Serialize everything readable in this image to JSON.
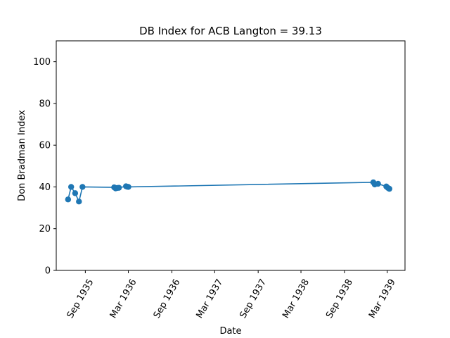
{
  "chart_data": {
    "type": "line",
    "title": "DB Index for ACB Langton = 39.13",
    "xlabel": "Date",
    "ylabel": "Don Bradman Index",
    "ylim": [
      0,
      110
    ],
    "xlim": [
      "1935-05-01",
      "1939-05-15"
    ],
    "yticks": [
      0,
      20,
      40,
      60,
      80,
      100
    ],
    "xticks": [
      {
        "date": "1935-09-01",
        "label": "Sep 1935"
      },
      {
        "date": "1936-03-01",
        "label": "Mar 1936"
      },
      {
        "date": "1936-09-01",
        "label": "Sep 1936"
      },
      {
        "date": "1937-03-01",
        "label": "Mar 1937"
      },
      {
        "date": "1937-09-01",
        "label": "Sep 1937"
      },
      {
        "date": "1938-03-01",
        "label": "Mar 1938"
      },
      {
        "date": "1938-09-01",
        "label": "Sep 1938"
      },
      {
        "date": "1939-03-01",
        "label": "Mar 1939"
      }
    ],
    "grid": false,
    "color": "#1f77b4",
    "series": [
      {
        "x": [
          "1935-06-20",
          "1935-07-03",
          "1935-07-20",
          "1935-08-05",
          "1935-08-20",
          "1936-01-01",
          "1936-01-07",
          "1936-01-14",
          "1936-01-21",
          "1936-02-20",
          "1936-02-25",
          "1936-03-01",
          "1939-01-01",
          "1939-01-07",
          "1939-01-21",
          "1939-02-25",
          "1939-03-04",
          "1939-03-10"
        ],
        "y": [
          34,
          40,
          37,
          33,
          40,
          39.8,
          39.3,
          39.5,
          39.6,
          40.3,
          40.1,
          40.0,
          42.2,
          41.2,
          41.5,
          40.2,
          39.5,
          39.1
        ]
      }
    ]
  }
}
